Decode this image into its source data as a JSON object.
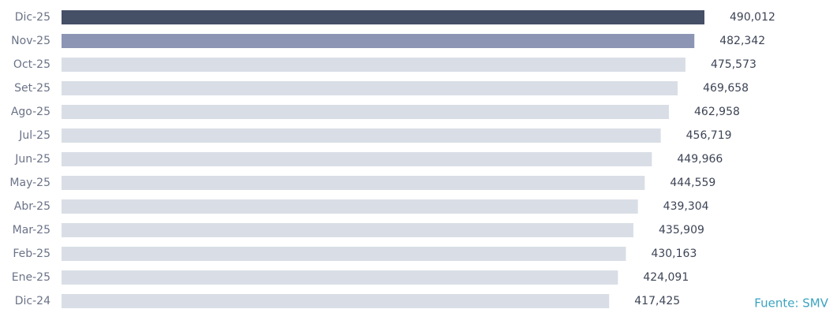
{
  "chart_data": {
    "type": "bar",
    "orientation": "horizontal",
    "categories": [
      "Dic-25",
      "Nov-25",
      "Oct-25",
      "Set-25",
      "Ago-25",
      "Jul-25",
      "Jun-25",
      "May-25",
      "Abr-25",
      "Mar-25",
      "Feb-25",
      "Ene-25",
      "Dic-24"
    ],
    "values": [
      490012,
      482342,
      475573,
      469658,
      462958,
      456719,
      449966,
      444559,
      439304,
      435909,
      430163,
      424091,
      417425
    ],
    "value_labels": [
      "490,012",
      "482,342",
      "475,573",
      "469,658",
      "462,958",
      "456,719",
      "449,966",
      "444,559",
      "439,304",
      "435,909",
      "430,163",
      "424,091",
      "417,425"
    ],
    "colors": [
      "#454f66",
      "#8c96b4",
      "#d9dee6",
      "#d9dee6",
      "#d9dee6",
      "#d9dee6",
      "#d9dee6",
      "#d9dee6",
      "#d9dee6",
      "#d9dee6",
      "#d9dee6",
      "#d9dee6",
      "#d9dee6"
    ],
    "source": "Fuente: SMV"
  }
}
